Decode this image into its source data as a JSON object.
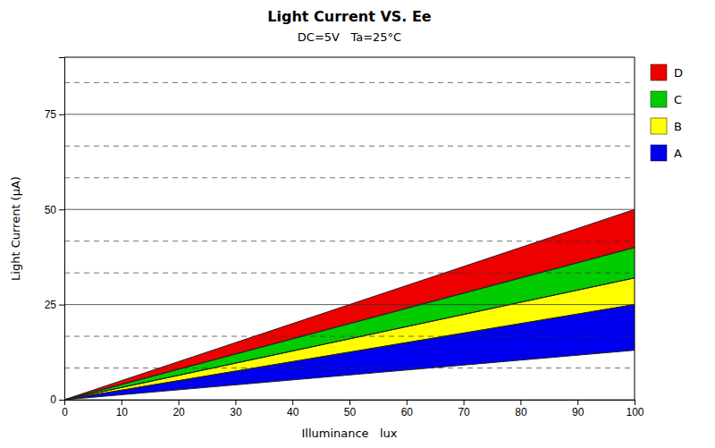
{
  "chart_data": {
    "type": "area",
    "title": "Light Current VS. Ee",
    "subtitle": "DC=5V   Ta=25°C",
    "x_label": "Illuminance   lux",
    "y_label": "Light Current (μA)",
    "x": [
      0,
      100
    ],
    "series": [
      {
        "name": "A",
        "color": "#0000EE",
        "lower": [
          0,
          13.0
        ],
        "values": [
          0,
          25.0
        ]
      },
      {
        "name": "B",
        "color": "#FFFF00",
        "lower": [
          0,
          25.0
        ],
        "values": [
          0,
          32.0
        ]
      },
      {
        "name": "C",
        "color": "#00CC00",
        "lower": [
          0,
          32.0
        ],
        "values": [
          0,
          40.0
        ]
      },
      {
        "name": "D",
        "color": "#EE0000",
        "lower": [
          0,
          40.0
        ],
        "values": [
          0,
          50.0
        ]
      }
    ],
    "xlim": [
      0,
      100
    ],
    "ylim": [
      0,
      90
    ],
    "xticks": [
      0,
      10,
      20,
      30,
      40,
      50,
      60,
      70,
      80,
      90,
      100
    ],
    "yticks": [
      0,
      25,
      50,
      75
    ],
    "y_minor_grid": [
      8.33,
      16.67,
      33.33,
      41.67,
      58.33,
      66.67,
      83.33
    ],
    "grid": "y",
    "legend": "right"
  }
}
